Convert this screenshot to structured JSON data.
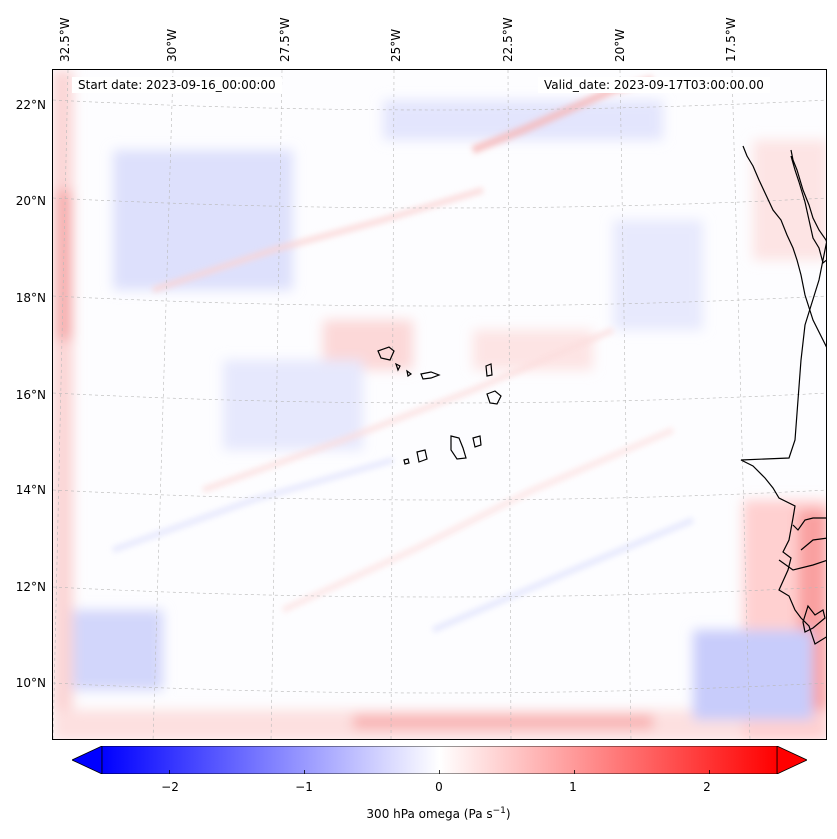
{
  "map": {
    "lon_labels": [
      "32.5°W",
      "30°W",
      "27.5°W",
      "25°W",
      "22.5°W",
      "20°W",
      "17.5°W"
    ],
    "lat_labels": [
      "22°N",
      "20°N",
      "18°N",
      "16°N",
      "14°N",
      "12°N",
      "10°N"
    ],
    "start_date": "Start date: 2023-09-16_00:00:00",
    "valid_date": "Valid_date: 2023-09-17T03:00:00.00"
  },
  "colorbar": {
    "ticks": [
      "−2",
      "−1",
      "0",
      "1",
      "2"
    ],
    "tick_values": [
      -2,
      -1,
      0,
      1,
      2
    ],
    "range": [
      -2.5,
      2.5
    ],
    "label": "300 hPa omega (Pa s",
    "label_sup": "−1",
    "label_end": ")",
    "colormap": "bwr",
    "low_color": "#0000ff",
    "mid_color": "#ffffff",
    "high_color": "#ff0000"
  },
  "colors": {
    "coastline": "#000000",
    "gridline": "#b8b8b8"
  }
}
